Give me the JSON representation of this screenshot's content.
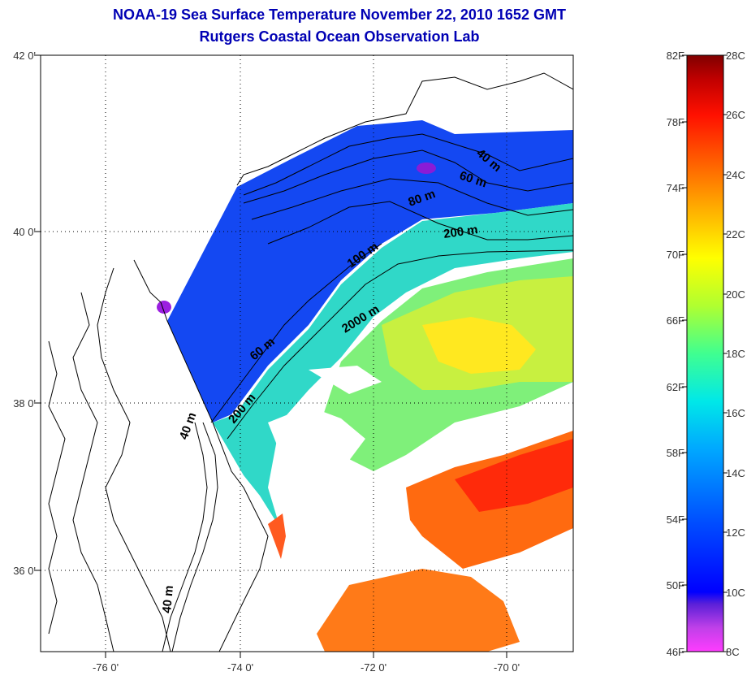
{
  "title": "NOAA-19 Sea Surface Temperature November 22, 2010 1652 GMT",
  "subtitle": "Rutgers Coastal Ocean Observation Lab",
  "map": {
    "lat_ticks": [
      "42 0'",
      "40 0'",
      "38 0'",
      "36 0'"
    ],
    "lon_ticks": [
      "-76 0'",
      "-74 0'",
      "-72 0'",
      "-70 0'"
    ],
    "lat_range": [
      35,
      42.2
    ],
    "lon_range": [
      -77,
      -69
    ],
    "grid": "dotted",
    "contour_labels": [
      "40 m",
      "60 m",
      "80 m",
      "200 m",
      "100 m",
      "2000 m",
      "60 m",
      "200 m",
      "40 m",
      "40 m"
    ]
  },
  "colorbar": {
    "fahrenheit_labels": [
      "82F",
      "78F",
      "74F",
      "70F",
      "66F",
      "62F",
      "58F",
      "54F",
      "50F",
      "46F"
    ],
    "celsius_labels": [
      "28C",
      "26C",
      "24C",
      "22C",
      "20C",
      "18C",
      "16C",
      "14C",
      "12C",
      "10C",
      "8C"
    ],
    "range_c": [
      8,
      28
    ],
    "colors": [
      "#ff3cff",
      "#6a1fd0",
      "#0000ff",
      "#0050ff",
      "#00a8ff",
      "#00e8e8",
      "#40ff80",
      "#b0ff30",
      "#ffff00",
      "#ffb000",
      "#ff6000",
      "#ff1000",
      "#c00000",
      "#800000"
    ]
  }
}
